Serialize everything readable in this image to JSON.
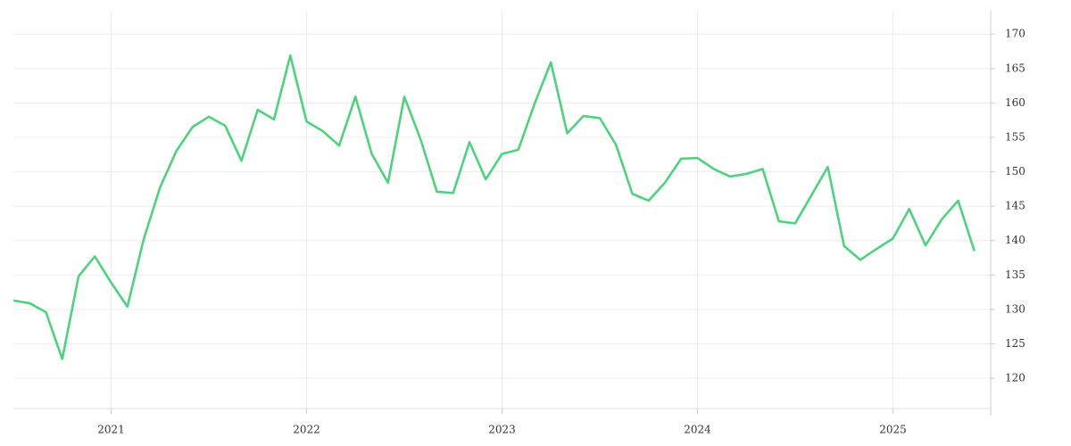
{
  "chart_data": {
    "type": "line",
    "categories": [
      null,
      null,
      null,
      null,
      null,
      null,
      "2021",
      null,
      null,
      null,
      null,
      null,
      null,
      null,
      null,
      null,
      null,
      null,
      "2022",
      null,
      null,
      null,
      null,
      null,
      null,
      null,
      null,
      null,
      null,
      null,
      "2023",
      null,
      null,
      null,
      null,
      null,
      null,
      null,
      null,
      null,
      null,
      null,
      "2024",
      null,
      null,
      null,
      null,
      null,
      null,
      null,
      null,
      null,
      null,
      null,
      "2025",
      null,
      null,
      null,
      null,
      null
    ],
    "values": [
      131.3,
      130.9,
      129.6,
      122.8,
      134.8,
      137.7,
      133.9,
      130.4,
      140.2,
      147.7,
      153.0,
      156.5,
      158.0,
      156.7,
      151.6,
      159.0,
      157.6,
      166.9,
      157.3,
      155.9,
      153.8,
      160.9,
      152.6,
      148.4,
      160.9,
      154.7,
      147.1,
      146.9,
      154.3,
      148.9,
      152.6,
      153.2,
      159.9,
      165.9,
      155.6,
      158.1,
      157.8,
      153.9,
      146.8,
      145.8,
      148.4,
      151.9,
      152.0,
      150.4,
      149.3,
      149.7,
      150.4,
      142.8,
      142.5,
      146.6,
      150.7,
      139.2,
      137.2,
      138.8,
      140.3,
      144.6,
      139.3,
      143.1,
      145.8,
      138.5
    ],
    "color": "#4fd17e",
    "ylim": [
      115.6,
      173.4
    ],
    "yticks": [
      120,
      125,
      130,
      135,
      140,
      145,
      150,
      155,
      160,
      165,
      170
    ],
    "grid": true
  }
}
